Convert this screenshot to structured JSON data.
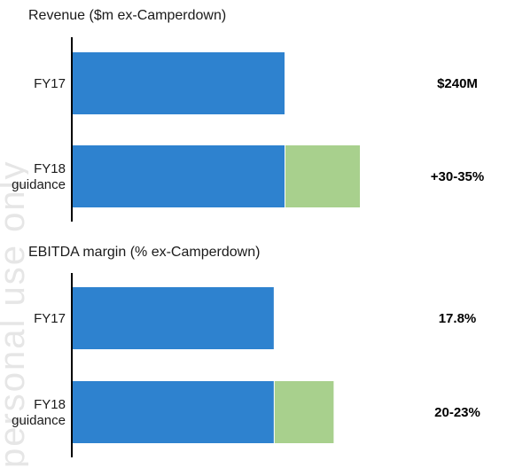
{
  "watermark": "personal use only",
  "chart_data": [
    {
      "type": "bar",
      "title": "Revenue ($m ex-Camperdown)",
      "categories": [
        [
          "FY17"
        ],
        [
          "FY18",
          "guidance"
        ]
      ],
      "series": [
        {
          "values": [
            240,
            240
          ],
          "color": "#2E82CF"
        },
        {
          "values": [
            0,
            84
          ],
          "color": "#A8D08D"
        }
      ],
      "data_labels": [
        "$240M",
        "+30-35%"
      ],
      "xlim": [
        0,
        320
      ]
    },
    {
      "type": "bar",
      "title": "EBITDA margin (% ex-Camperdown)",
      "categories": [
        [
          "FY17"
        ],
        [
          "FY18",
          "guidance"
        ]
      ],
      "series": [
        {
          "values": [
            17.8,
            17.8
          ],
          "color": "#2E82CF"
        },
        {
          "values": [
            0,
            5.2
          ],
          "color": "#A8D08D"
        }
      ],
      "data_labels": [
        "17.8%",
        "20-23%"
      ],
      "xlim": [
        0,
        25
      ]
    }
  ]
}
